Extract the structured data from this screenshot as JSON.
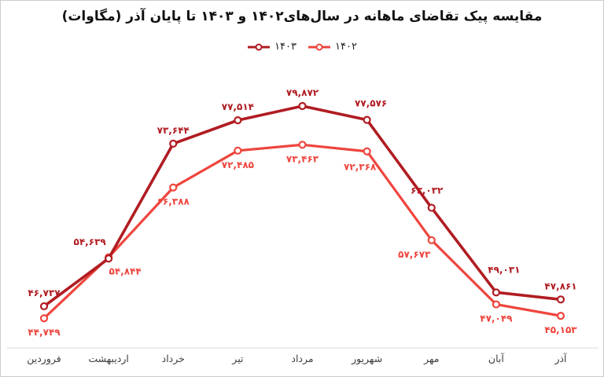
{
  "chart_data": {
    "type": "line",
    "title": "مقایسه پیک تقاضای ماهانه در سال‌های۱۴۰۲ و ۱۴۰۳ تا پایان آذر (مگاوات)",
    "categories": [
      "فروردین",
      "اردیبهشت",
      "خرداد",
      "تیر",
      "مرداد",
      "شهریور",
      "مهر",
      "آبان",
      "آذر"
    ],
    "series": [
      {
        "name": "۱۴۰۳",
        "color": "#b01c22",
        "values": [
          46737,
          54639,
          73644,
          77514,
          79872,
          77576,
          63032,
          49031,
          47861
        ],
        "labels": [
          "۴۶,۷۳۷",
          "۵۴,۶۳۹",
          "۷۳,۶۴۴",
          "۷۷,۵۱۴",
          "۷۹,۸۷۲",
          "۷۷,۵۷۶",
          "۶۳,۰۳۲",
          "۴۹,۰۳۱",
          "۴۷,۸۶۱"
        ]
      },
      {
        "name": "۱۴۰۲",
        "color": "#ee453d",
        "values": [
          44749,
          54844,
          66388,
          72485,
          73463,
          72368,
          57673,
          47049,
          45153
        ],
        "labels": [
          "۴۴,۷۴۹",
          "۵۴,۸۴۴",
          "۶۶,۳۸۸",
          "۷۲,۴۸۵",
          "۷۳,۴۶۳",
          "۷۲,۳۶۸",
          "۵۷,۶۷۳",
          "۴۷,۰۴۹",
          "۴۵,۱۵۳"
        ]
      }
    ],
    "ylim": [
      44000,
      80000
    ],
    "grid": false,
    "legend_position": "top-center",
    "marker": "open-circle",
    "axis_line_color": "#d9d9d9",
    "category_label_color": "#3d3d3d"
  }
}
